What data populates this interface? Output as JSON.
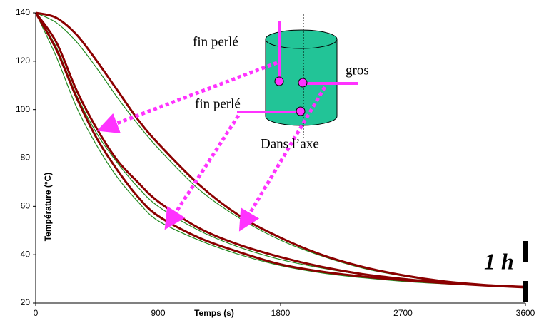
{
  "chart_data": {
    "type": "line",
    "x_label": "Temps (s)",
    "y_label": "Température (°C)",
    "x": [
      0,
      150,
      300,
      450,
      600,
      750,
      900,
      1200,
      1500,
      1800,
      2100,
      2400,
      2700,
      3000,
      3300,
      3600
    ],
    "series": [
      {
        "color": "#228b22",
        "values": [
          140,
          122,
          101,
          85,
          72,
          62,
          54,
          46,
          40,
          35.5,
          32.5,
          30.5,
          29,
          28,
          27.2,
          26.5
        ]
      },
      {
        "color": "#228b22",
        "values": [
          140,
          126,
          106,
          90,
          78,
          68,
          60,
          50,
          43,
          38,
          34.5,
          31.8,
          29.8,
          28.3,
          27.3,
          26.6
        ]
      },
      {
        "color": "#228b22",
        "values": [
          140,
          136,
          128,
          117,
          105,
          94,
          84,
          67,
          55,
          46,
          39.5,
          34.5,
          31.2,
          28.8,
          27.4,
          26.7
        ]
      },
      {
        "color": "#8b0000",
        "values": [
          140,
          125,
          105,
          88,
          75,
          64,
          56,
          47,
          41,
          36,
          33,
          31,
          29.5,
          28.3,
          27.3,
          26.5
        ]
      },
      {
        "color": "#8b0000",
        "values": [
          140,
          128,
          108,
          92,
          79,
          70,
          62,
          51,
          44,
          39,
          35,
          32,
          30,
          28.5,
          27.4,
          26.6
        ]
      },
      {
        "color": "#8b0000",
        "values": [
          140,
          138,
          131,
          120,
          108,
          96,
          86,
          69,
          56,
          47,
          40,
          35,
          31.5,
          29,
          27.5,
          26.7
        ]
      }
    ],
    "xlim": [
      0,
      3600
    ],
    "xticks": [
      0,
      900,
      1800,
      2700,
      3600
    ],
    "ylim": [
      20,
      140
    ],
    "yticks": [
      20,
      40,
      60,
      80,
      100,
      120,
      140
    ],
    "annotations": {
      "fine_top": "fin perlé",
      "large": "gros",
      "fine_bottom": "fin perlé",
      "axis": "Dans l’axe",
      "duration": "1 h"
    }
  }
}
